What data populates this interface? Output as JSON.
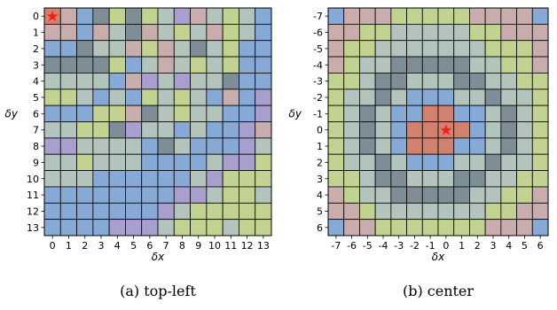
{
  "chart_data": [
    {
      "type": "heatmap",
      "caption": "(a) top-left",
      "xlabel": "δx",
      "ylabel": "δy",
      "x_ticks": [
        "0",
        "1",
        "2",
        "3",
        "4",
        "5",
        "6",
        "7",
        "8",
        "9",
        "10",
        "11",
        "12",
        "13"
      ],
      "y_ticks": [
        "0",
        "1",
        "2",
        "3",
        "4",
        "5",
        "6",
        "7",
        "8",
        "9",
        "10",
        "11",
        "12",
        "13"
      ],
      "marker": {
        "label": "★",
        "row": 0,
        "col": 0
      },
      "grid": true,
      "cell_codes": [
        [
          0,
          4,
          2,
          5,
          6,
          5,
          6,
          3,
          7,
          4,
          3,
          6,
          3,
          2
        ],
        [
          4,
          4,
          2,
          4,
          3,
          5,
          4,
          3,
          6,
          3,
          4,
          6,
          3,
          2
        ],
        [
          2,
          2,
          5,
          3,
          3,
          4,
          6,
          4,
          3,
          5,
          3,
          6,
          2,
          2
        ],
        [
          5,
          5,
          5,
          5,
          6,
          2,
          3,
          4,
          3,
          6,
          3,
          6,
          2,
          2
        ],
        [
          3,
          3,
          3,
          3,
          2,
          4,
          7,
          3,
          7,
          3,
          3,
          5,
          2,
          2
        ],
        [
          6,
          6,
          3,
          2,
          3,
          2,
          6,
          3,
          6,
          3,
          2,
          4,
          2,
          7
        ],
        [
          2,
          2,
          2,
          6,
          6,
          4,
          5,
          3,
          6,
          3,
          3,
          2,
          2,
          7
        ],
        [
          3,
          3,
          6,
          6,
          5,
          7,
          3,
          3,
          2,
          3,
          2,
          2,
          7,
          4
        ],
        [
          7,
          7,
          3,
          3,
          3,
          3,
          2,
          5,
          3,
          2,
          2,
          2,
          7,
          3
        ],
        [
          3,
          3,
          6,
          3,
          3,
          3,
          2,
          2,
          2,
          2,
          3,
          7,
          7,
          6
        ],
        [
          3,
          3,
          3,
          2,
          2,
          2,
          2,
          2,
          2,
          3,
          7,
          6,
          6,
          6
        ],
        [
          2,
          2,
          2,
          2,
          2,
          2,
          2,
          2,
          7,
          7,
          3,
          6,
          6,
          3
        ],
        [
          2,
          2,
          2,
          2,
          2,
          2,
          2,
          7,
          3,
          6,
          6,
          6,
          6,
          6
        ],
        [
          2,
          2,
          2,
          2,
          7,
          7,
          7,
          3,
          6,
          6,
          6,
          3,
          6,
          6
        ]
      ]
    },
    {
      "type": "heatmap",
      "caption": "(b) center",
      "xlabel": "δx",
      "ylabel": "δy",
      "x_ticks": [
        "-7",
        "-6",
        "-5",
        "-4",
        "-3",
        "-2",
        "-1",
        "0",
        "1",
        "2",
        "3",
        "4",
        "5",
        "6"
      ],
      "y_ticks": [
        "-7",
        "-6",
        "-5",
        "-4",
        "-3",
        "-2",
        "-1",
        "0",
        "1",
        "2",
        "3",
        "4",
        "5",
        "6"
      ],
      "marker": {
        "label": "★",
        "row": 7,
        "col": 7
      },
      "grid": true,
      "cell_codes": [
        [
          2,
          4,
          4,
          4,
          6,
          6,
          6,
          6,
          6,
          4,
          4,
          4,
          4,
          2
        ],
        [
          4,
          4,
          6,
          6,
          3,
          3,
          3,
          3,
          3,
          6,
          6,
          4,
          4,
          4
        ],
        [
          4,
          6,
          6,
          3,
          3,
          3,
          3,
          3,
          3,
          3,
          6,
          6,
          6,
          4
        ],
        [
          4,
          6,
          3,
          3,
          5,
          5,
          5,
          5,
          5,
          3,
          3,
          6,
          6,
          4
        ],
        [
          6,
          6,
          3,
          5,
          5,
          3,
          3,
          3,
          5,
          5,
          3,
          3,
          6,
          6
        ],
        [
          6,
          3,
          3,
          5,
          3,
          2,
          2,
          2,
          3,
          3,
          5,
          3,
          3,
          6
        ],
        [
          6,
          3,
          5,
          3,
          2,
          2,
          1,
          1,
          2,
          2,
          3,
          5,
          3,
          6
        ],
        [
          6,
          3,
          5,
          3,
          2,
          1,
          1,
          0,
          1,
          2,
          3,
          5,
          3,
          6
        ],
        [
          6,
          3,
          5,
          3,
          2,
          1,
          1,
          1,
          2,
          2,
          3,
          5,
          3,
          6
        ],
        [
          6,
          3,
          3,
          5,
          3,
          2,
          2,
          2,
          3,
          3,
          5,
          3,
          3,
          6
        ],
        [
          6,
          6,
          3,
          5,
          5,
          3,
          3,
          3,
          5,
          5,
          3,
          3,
          6,
          6
        ],
        [
          4,
          6,
          3,
          3,
          5,
          5,
          5,
          5,
          5,
          3,
          3,
          6,
          6,
          4
        ],
        [
          4,
          4,
          6,
          3,
          3,
          3,
          3,
          3,
          3,
          3,
          6,
          6,
          4,
          4
        ],
        [
          2,
          4,
          4,
          6,
          6,
          6,
          6,
          6,
          6,
          6,
          4,
          4,
          4,
          2
        ]
      ]
    }
  ],
  "palette": [
    "#d1826f",
    "#d1826f",
    "#87a9d6",
    "#b3c4bd",
    "#c9adad",
    "#7d8e96",
    "#c2d291",
    "#a99fce"
  ],
  "palette_names": [
    "origin-salmon",
    "salmon",
    "blue",
    "sage",
    "rose",
    "slate",
    "lime",
    "lavender"
  ],
  "marker_color": "#ff1a1a"
}
